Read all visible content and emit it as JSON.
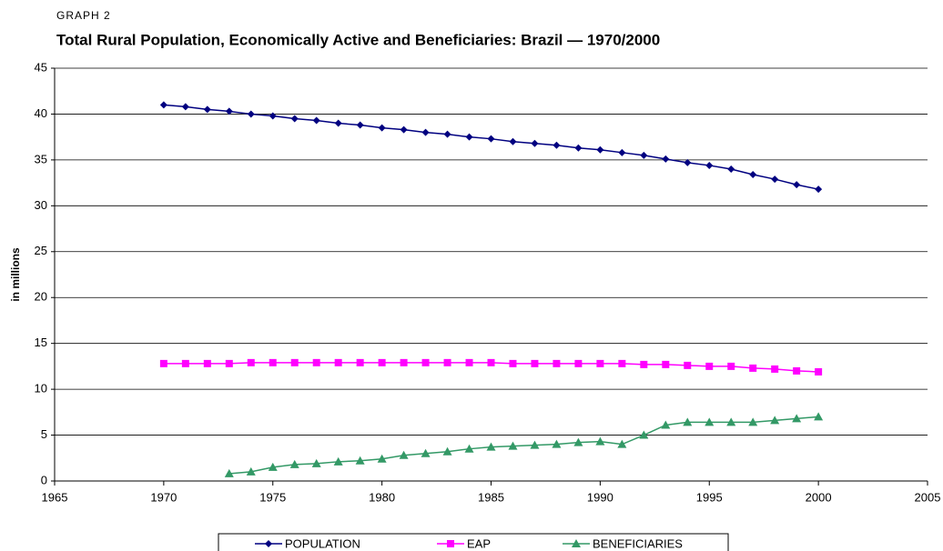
{
  "chart_data": {
    "type": "line",
    "kicker": "GRAPH 2",
    "title": "Total Rural Population, Economically Active and Beneficiaries: Brazil — 1970/2000",
    "ylabel": "in millions",
    "x": [
      1970,
      1971,
      1972,
      1973,
      1974,
      1975,
      1976,
      1977,
      1978,
      1979,
      1980,
      1981,
      1982,
      1983,
      1984,
      1985,
      1986,
      1987,
      1988,
      1989,
      1990,
      1991,
      1992,
      1993,
      1994,
      1995,
      1996,
      1997,
      1998,
      1999,
      2000
    ],
    "series": [
      {
        "name": "POPULATION",
        "color": "#000080",
        "marker": "diamond",
        "values": [
          41.0,
          40.8,
          40.5,
          40.3,
          40.0,
          39.8,
          39.5,
          39.3,
          39.0,
          38.8,
          38.5,
          38.3,
          38.0,
          37.8,
          37.5,
          37.3,
          37.0,
          36.8,
          36.6,
          36.3,
          36.1,
          35.8,
          35.5,
          35.1,
          34.7,
          34.4,
          34.0,
          33.4,
          32.9,
          32.3,
          31.8
        ]
      },
      {
        "name": "EAP",
        "color": "#ff00ff",
        "marker": "square",
        "values": [
          12.8,
          12.8,
          12.8,
          12.8,
          12.9,
          12.9,
          12.9,
          12.9,
          12.9,
          12.9,
          12.9,
          12.9,
          12.9,
          12.9,
          12.9,
          12.9,
          12.8,
          12.8,
          12.8,
          12.8,
          12.8,
          12.8,
          12.7,
          12.7,
          12.6,
          12.5,
          12.5,
          12.3,
          12.2,
          12.0,
          11.9
        ]
      },
      {
        "name": "BENEFICIARIES",
        "color": "#339966",
        "marker": "triangle",
        "values": [
          null,
          null,
          null,
          0.8,
          1.0,
          1.5,
          1.8,
          1.9,
          2.1,
          2.2,
          2.4,
          2.8,
          3.0,
          3.2,
          3.5,
          3.7,
          3.8,
          3.9,
          4.0,
          4.2,
          4.3,
          4.0,
          5.0,
          6.1,
          6.4,
          6.4,
          6.4,
          6.4,
          6.6,
          6.8,
          7.0
        ]
      }
    ],
    "xlim": [
      1965,
      2005
    ],
    "xticks": [
      1965,
      1970,
      1975,
      1980,
      1985,
      1990,
      1995,
      2000,
      2005
    ],
    "ylim": [
      0,
      45
    ],
    "yticks": [
      0,
      5,
      10,
      15,
      20,
      25,
      30,
      35,
      40,
      45
    ],
    "grid": true,
    "legend": "bottom"
  }
}
